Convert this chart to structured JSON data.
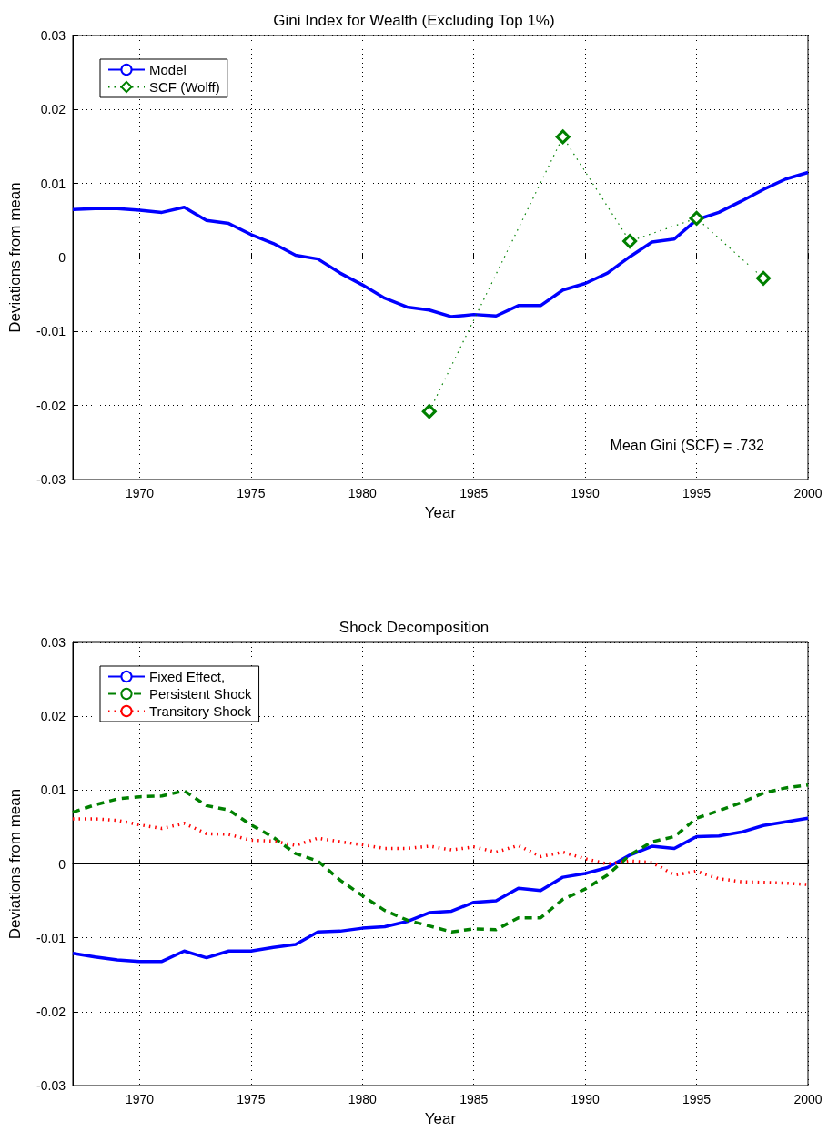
{
  "chart_data": [
    {
      "type": "line",
      "title": "Gini Index for Wealth (Excluding Top 1%)",
      "xlabel": "Year",
      "ylabel": "Deviations from mean",
      "annotations": [
        "Mean Gini (SCF) = .732"
      ],
      "x": [
        1967,
        1968,
        1969,
        1970,
        1971,
        1972,
        1973,
        1974,
        1975,
        1976,
        1977,
        1978,
        1979,
        1980,
        1981,
        1982,
        1983,
        1984,
        1985,
        1986,
        1987,
        1988,
        1989,
        1990,
        1991,
        1992,
        1993,
        1994,
        1995,
        1996,
        1997,
        1998,
        1999,
        2000
      ],
      "series": [
        {
          "name": "Model",
          "color": "#0000ff",
          "line_style": "solid",
          "marker": "none",
          "values": [
            0.0065,
            0.0066,
            0.0066,
            0.0064,
            0.0061,
            0.0068,
            0.005,
            0.0046,
            0.0031,
            0.0019,
            0.0003,
            -0.0002,
            -0.0021,
            -0.0037,
            -0.0055,
            -0.0067,
            -0.0071,
            -0.008,
            -0.0077,
            -0.0079,
            -0.0065,
            -0.0065,
            -0.0044,
            -0.0035,
            -0.0021,
            0.0001,
            0.0021,
            0.0025,
            0.0051,
            0.0061,
            0.0076,
            0.0092,
            0.0106,
            0.0115
          ]
        },
        {
          "name": "SCF (Wolff)",
          "color": "#008000",
          "line_style": "dotted",
          "marker": "diamond",
          "x": [
            1983,
            1989,
            1992,
            1995,
            1998
          ],
          "values": [
            -0.0208,
            0.0163,
            0.0022,
            0.0053,
            -0.0028
          ]
        }
      ],
      "xlim": [
        1967,
        2000
      ],
      "xticks": [
        1970,
        1975,
        1980,
        1985,
        1990,
        1995,
        2000
      ],
      "ylim": [
        -0.03,
        0.03
      ],
      "yticks": [
        -0.03,
        -0.02,
        -0.01,
        0,
        0.01,
        0.02,
        0.03
      ],
      "grid": true,
      "legend": "top left"
    },
    {
      "type": "line",
      "title": "Shock Decomposition",
      "xlabel": "Year",
      "ylabel": "Deviations from mean",
      "x": [
        1967,
        1968,
        1969,
        1970,
        1971,
        1972,
        1973,
        1974,
        1975,
        1976,
        1977,
        1978,
        1979,
        1980,
        1981,
        1982,
        1983,
        1984,
        1985,
        1986,
        1987,
        1988,
        1989,
        1990,
        1991,
        1992,
        1993,
        1994,
        1995,
        1996,
        1997,
        1998,
        1999,
        2000
      ],
      "series": [
        {
          "name": "Fixed Effect,",
          "color": "#0000ff",
          "line_style": "solid",
          "marker": "none",
          "values": [
            -0.0121,
            -0.0126,
            -0.013,
            -0.0132,
            -0.0132,
            -0.0118,
            -0.0127,
            -0.0118,
            -0.0118,
            -0.0113,
            -0.0109,
            -0.0092,
            -0.0091,
            -0.0087,
            -0.0085,
            -0.0078,
            -0.0066,
            -0.0064,
            -0.0052,
            -0.005,
            -0.0033,
            -0.0036,
            -0.0018,
            -0.0013,
            -0.0005,
            0.0012,
            0.0024,
            0.0021,
            0.0037,
            0.0038,
            0.0043,
            0.0052,
            0.0057,
            0.0062
          ]
        },
        {
          "name": "Persistent Shock",
          "color": "#008000",
          "line_style": "dashed",
          "marker": "none",
          "values": [
            0.007,
            0.008,
            0.0088,
            0.0091,
            0.0092,
            0.0099,
            0.0079,
            0.0073,
            0.0053,
            0.0036,
            0.0014,
            0.0004,
            -0.0022,
            -0.0043,
            -0.0063,
            -0.0076,
            -0.0084,
            -0.0092,
            -0.0088,
            -0.0089,
            -0.0073,
            -0.0073,
            -0.0048,
            -0.0034,
            -0.0015,
            0.0012,
            0.003,
            0.0037,
            0.0062,
            0.0072,
            0.0083,
            0.0096,
            0.0103,
            0.0107
          ]
        },
        {
          "name": "Transitory Shock",
          "color": "#ff0000",
          "line_style": "dotted",
          "marker": "none",
          "values": [
            0.0061,
            0.0061,
            0.0059,
            0.0053,
            0.0048,
            0.0055,
            0.0041,
            0.004,
            0.0032,
            0.0031,
            0.0025,
            0.0035,
            0.003,
            0.0026,
            0.0021,
            0.0021,
            0.0024,
            0.0019,
            0.0023,
            0.0016,
            0.0025,
            0.001,
            0.0016,
            0.0007,
            0,
            0.0004,
            0.0002,
            -0.0015,
            -0.001,
            -0.002,
            -0.0024,
            -0.0025,
            -0.0026,
            -0.0028
          ]
        }
      ],
      "xlim": [
        1967,
        2000
      ],
      "xticks": [
        1970,
        1975,
        1980,
        1985,
        1990,
        1995,
        2000
      ],
      "ylim": [
        -0.03,
        0.03
      ],
      "yticks": [
        -0.03,
        -0.02,
        -0.01,
        0,
        0.01,
        0.02,
        0.03
      ],
      "grid": true,
      "legend": "top left"
    }
  ]
}
